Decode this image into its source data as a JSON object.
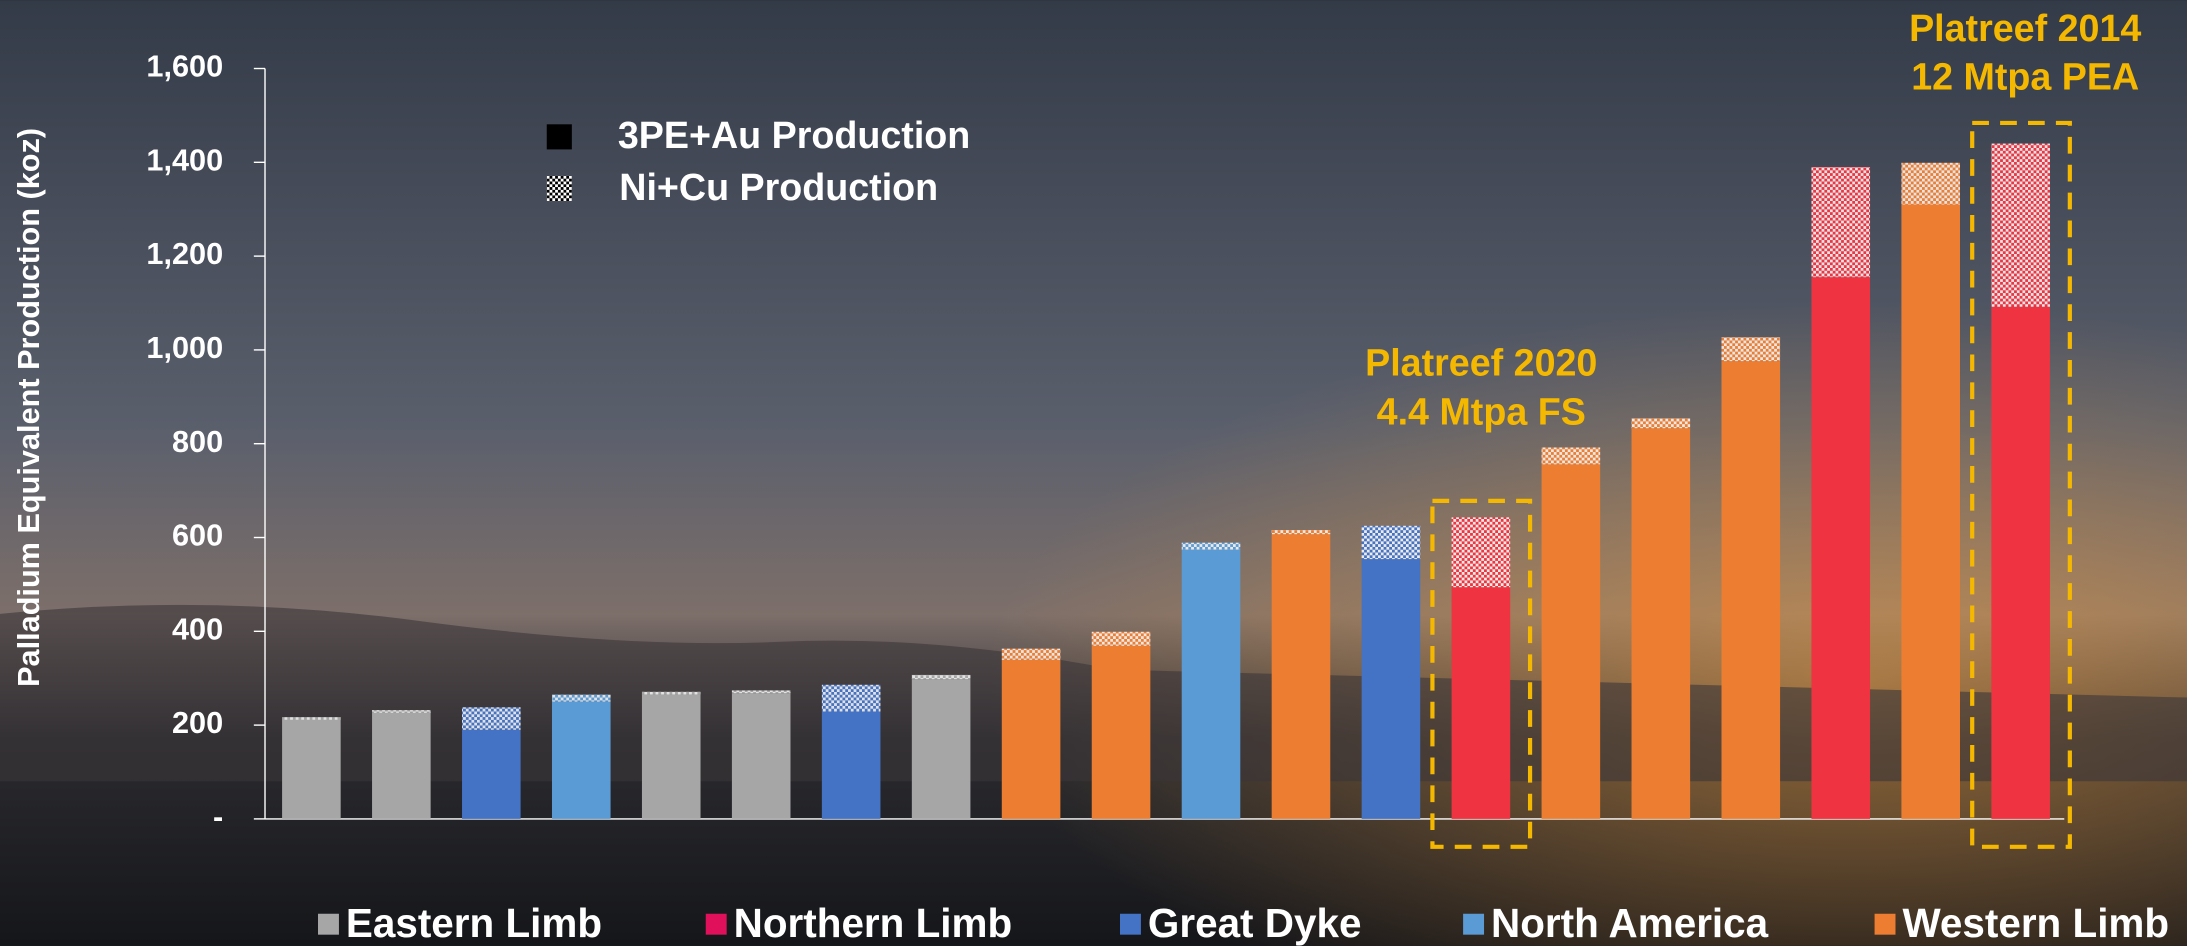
{
  "chart_data": {
    "type": "stacked-bar",
    "y_label": "Palladium Equivalent Production (koz)",
    "categories": [
      null,
      null,
      null,
      null,
      null,
      null,
      null,
      null,
      null,
      null,
      null,
      null,
      null,
      null,
      null,
      null,
      null,
      null,
      null,
      null
    ],
    "series": [
      {
        "name": "3PE+Au Production",
        "values": [
          211,
          226,
          190,
          250,
          265,
          268,
          229,
          298,
          339,
          369,
          574,
          607,
          554,
          494,
          756,
          833,
          976,
          1155,
          1310,
          1092
        ]
      },
      {
        "name": "Ni+Cu Production",
        "values": [
          6,
          6,
          48,
          15,
          6,
          6,
          57,
          9,
          24,
          30,
          15,
          9,
          71,
          149,
          36,
          21,
          51,
          235,
          89,
          348
        ]
      }
    ],
    "bar_colors": [
      "#a6a6a6",
      "#a6a6a6",
      "#4472c4",
      "#5b9bd5",
      "#a6a6a6",
      "#a6a6a6",
      "#4472c4",
      "#a6a6a6",
      "#ed7d31",
      "#ed7d31",
      "#5b9bd5",
      "#ed7d31",
      "#4472c4",
      "#ef3340",
      "#ed7d31",
      "#ed7d31",
      "#ed7d31",
      "#ef3340",
      "#ed7d31",
      "#ef3340"
    ],
    "regions": [
      {
        "name": "Eastern Limb",
        "color": "#a6a6a6"
      },
      {
        "name": "Northern Limb",
        "color": "#e0105a"
      },
      {
        "name": "Great Dyke",
        "color": "#4472c4"
      },
      {
        "name": "North America",
        "color": "#5b9bd5"
      },
      {
        "name": "Western Limb",
        "color": "#ed7d31"
      }
    ],
    "annotations": [
      {
        "lines": [
          "Platreef 2020",
          "4.4 Mtpa FS"
        ],
        "color": "#f5b800"
      },
      {
        "lines": [
          "Platreef 2014",
          "12 Mtpa PEA"
        ],
        "color": "#f5b800"
      }
    ],
    "ylim": [
      0,
      1600
    ],
    "yticks": [
      {
        "value": 0,
        "label": "-"
      },
      200,
      400,
      600,
      800,
      {
        "value": 1000,
        "label": "1,000"
      },
      {
        "value": 1200,
        "label": "1,200"
      },
      {
        "value": 1400,
        "label": "1,400"
      },
      {
        "value": 1600,
        "label": "1,600"
      }
    ]
  }
}
